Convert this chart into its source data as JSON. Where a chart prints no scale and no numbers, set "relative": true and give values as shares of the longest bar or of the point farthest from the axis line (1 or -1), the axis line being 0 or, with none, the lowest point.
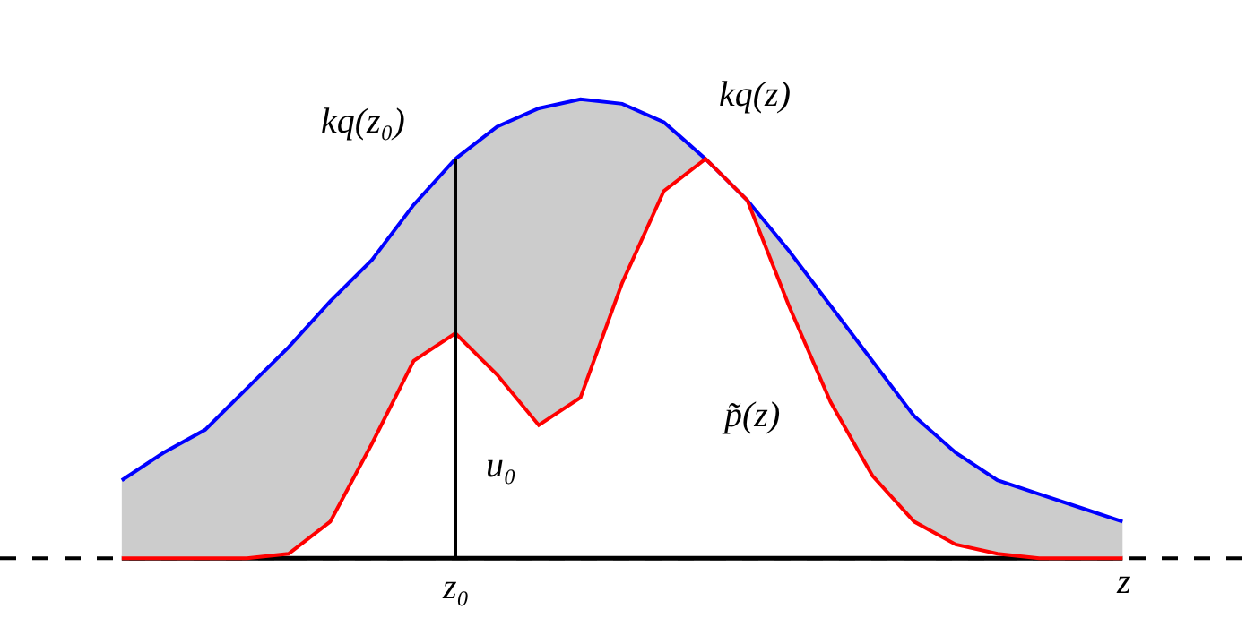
{
  "chart_data": {
    "type": "line",
    "relative": true,
    "grid": false,
    "line_style": "solid",
    "marker": "none",
    "categories": [
      null,
      null,
      null,
      null,
      null,
      null,
      null,
      null,
      null,
      null,
      null,
      null,
      null,
      null,
      null,
      null,
      null,
      null,
      null,
      null,
      null,
      null,
      null,
      null,
      null
    ],
    "series": [
      {
        "color": "#0000ff",
        "values": [
          0.17,
          0.23,
          0.28,
          0.37,
          0.46,
          0.56,
          0.65,
          0.77,
          0.87,
          0.94,
          0.98,
          1,
          0.99,
          0.95,
          0.87,
          0.78,
          0.67,
          0.55,
          0.43,
          0.31,
          0.23,
          0.17,
          0.14,
          0.11,
          0.08
        ],
        "lower": [
          0,
          0,
          0,
          0,
          0.01,
          0.08,
          0.25,
          0.43,
          0.49,
          0.4,
          0.29,
          0.35,
          0.6,
          0.8,
          0.87,
          0.78,
          0.55,
          0.34,
          0.18,
          0.08,
          0.03,
          0.01,
          0,
          0,
          0
        ],
        "upper": [
          0.17,
          0.23,
          0.28,
          0.37,
          0.46,
          0.56,
          0.65,
          0.77,
          0.87,
          0.94,
          0.98,
          1,
          0.99,
          0.95,
          0.87,
          0.78,
          0.67,
          0.55,
          0.43,
          0.31,
          0.23,
          0.17,
          0.14,
          0.11,
          0.08
        ]
      },
      {
        "color": "#ff0000",
        "values": [
          0,
          0,
          0,
          0,
          0.01,
          0.08,
          0.25,
          0.43,
          0.49,
          0.4,
          0.29,
          0.35,
          0.6,
          0.8,
          0.87,
          0.78,
          0.55,
          0.34,
          0.18,
          0.08,
          0.03,
          0.01,
          0,
          0,
          0
        ]
      }
    ],
    "ref_lines": [
      {
        "axis": "y",
        "value": 0,
        "color": "#000000",
        "line_style": "dashed"
      }
    ],
    "annotations": [
      "kq(z₀)",
      "u₀",
      "kq(z)",
      "p̃(z)",
      "z₀",
      "z"
    ]
  }
}
